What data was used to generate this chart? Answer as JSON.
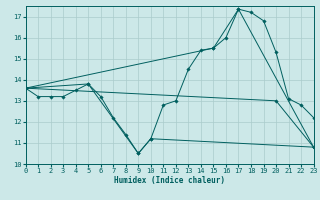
{
  "title": "",
  "xlabel": "Humidex (Indice chaleur)",
  "xlim": [
    0,
    23
  ],
  "ylim": [
    10,
    17.5
  ],
  "yticks": [
    10,
    11,
    12,
    13,
    14,
    15,
    16,
    17
  ],
  "xticks": [
    0,
    1,
    2,
    3,
    4,
    5,
    6,
    7,
    8,
    9,
    10,
    11,
    12,
    13,
    14,
    15,
    16,
    17,
    18,
    19,
    20,
    21,
    22,
    23
  ],
  "bg_color": "#cce8e8",
  "grid_color": "#aacccc",
  "line_color": "#005f5f",
  "series": [
    {
      "x": [
        0,
        1,
        2,
        3,
        4,
        5,
        6,
        7,
        8,
        9,
        10,
        11,
        12,
        13,
        14,
        15,
        16,
        17,
        18,
        19,
        20,
        21,
        22,
        23
      ],
      "y": [
        13.6,
        13.2,
        13.2,
        13.2,
        13.5,
        13.8,
        13.2,
        12.2,
        11.4,
        10.5,
        11.2,
        12.8,
        13.0,
        14.5,
        15.4,
        15.5,
        16.0,
        17.35,
        17.2,
        16.8,
        15.3,
        13.1,
        12.8,
        12.2
      ]
    },
    {
      "x": [
        0,
        20,
        23
      ],
      "y": [
        13.6,
        13.0,
        10.8
      ]
    },
    {
      "x": [
        0,
        5,
        9,
        10,
        23
      ],
      "y": [
        13.6,
        13.8,
        10.5,
        11.2,
        10.8
      ]
    },
    {
      "x": [
        0,
        15,
        17,
        23
      ],
      "y": [
        13.6,
        15.5,
        17.35,
        10.8
      ]
    }
  ]
}
